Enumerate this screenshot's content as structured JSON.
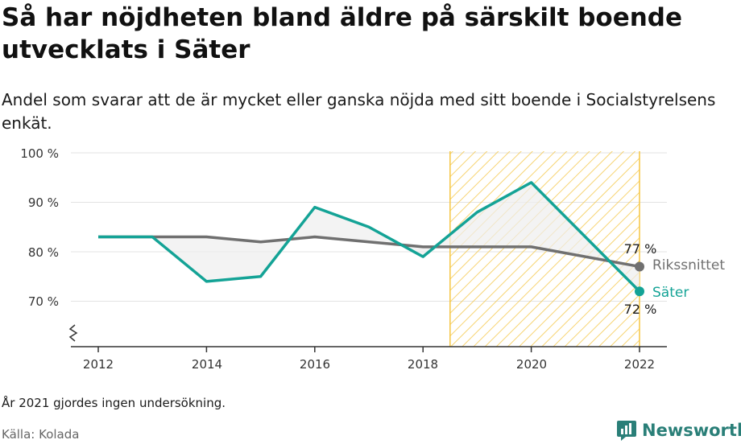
{
  "title": "Så har nöjdheten bland äldre på särskilt boende utvecklats i Säter",
  "subtitle": "Andel som svarar att de är mycket eller ganska nöjda med sitt boende i Socialstyrelsens enkät.",
  "note": "År 2021 gjordes ingen undersökning.",
  "source": "Källa: Kolada",
  "brand": "Newsworthy",
  "colors": {
    "sater": "#14a396",
    "riks": "#707070",
    "highlight": "#f5c642",
    "fill_between": "#eeeeee"
  },
  "chart_data": {
    "type": "line",
    "x": [
      2012,
      2013,
      2014,
      2015,
      2016,
      2017,
      2018,
      2019,
      2020,
      2022
    ],
    "x_ticks": [
      "2012",
      "2014",
      "2016",
      "2018",
      "2020",
      "2022"
    ],
    "y_ticks": [
      "100 %",
      "90 %",
      "80 %",
      "70 %"
    ],
    "ylim": [
      70,
      100
    ],
    "series": [
      {
        "name": "Rikssnittet",
        "values": [
          83,
          83,
          83,
          82,
          83,
          82,
          81,
          81,
          81,
          77
        ],
        "end_label": "77 %"
      },
      {
        "name": "Säter",
        "values": [
          83,
          83,
          74,
          75,
          89,
          85,
          79,
          88,
          94,
          72
        ],
        "end_label": "72 %"
      }
    ],
    "highlight_range": [
      2018.5,
      2022
    ],
    "grid": "horizontal",
    "axis_break": true
  }
}
